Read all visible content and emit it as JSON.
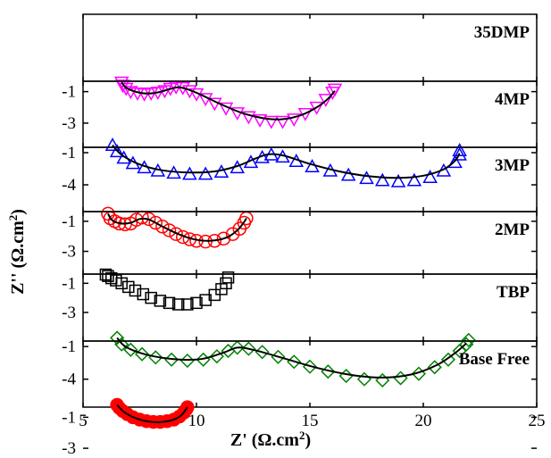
{
  "chart_data": {
    "type": "scatter",
    "layout": "stacked-panels",
    "xlabel": "Z' (Ω.cm2)",
    "ylabel": "Z'' (Ω.cm2)",
    "xlim": [
      5,
      25
    ],
    "x_ticks": [
      "5",
      "10",
      "15",
      "20",
      "25"
    ],
    "fit_line_color": "#000000",
    "panels": [
      {
        "name": "35DMP",
        "marker": "triangle-down",
        "color": "#ff00ff",
        "ylim": [
          0,
          -3.8
        ],
        "y_ticks": [
          "-3",
          "-1"
        ],
        "y_tick_values": [
          -3,
          -1
        ],
        "points": [
          [
            6.7,
            -0.4
          ],
          [
            6.75,
            -0.6
          ],
          [
            6.9,
            -0.8
          ],
          [
            7.1,
            -1.0
          ],
          [
            7.4,
            -1.1
          ],
          [
            7.7,
            -1.15
          ],
          [
            8.0,
            -1.1
          ],
          [
            8.3,
            -1.05
          ],
          [
            8.6,
            -0.95
          ],
          [
            8.85,
            -0.8
          ],
          [
            9.1,
            -0.7
          ],
          [
            9.4,
            -0.75
          ],
          [
            9.7,
            -0.95
          ],
          [
            10.0,
            -1.15
          ],
          [
            10.4,
            -1.45
          ],
          [
            10.8,
            -1.75
          ],
          [
            11.3,
            -2.05
          ],
          [
            11.8,
            -2.35
          ],
          [
            12.3,
            -2.6
          ],
          [
            12.8,
            -2.8
          ],
          [
            13.3,
            -2.9
          ],
          [
            13.8,
            -2.9
          ],
          [
            14.3,
            -2.75
          ],
          [
            14.8,
            -2.4
          ],
          [
            15.3,
            -2.0
          ],
          [
            15.7,
            -1.5
          ],
          [
            16.0,
            -1.05
          ],
          [
            16.1,
            -0.85
          ]
        ],
        "fit": [
          [
            6.7,
            -0.4
          ],
          [
            6.9,
            -0.75
          ],
          [
            7.3,
            -1.0
          ],
          [
            7.8,
            -1.12
          ],
          [
            8.3,
            -1.05
          ],
          [
            8.8,
            -0.85
          ],
          [
            9.2,
            -0.72
          ],
          [
            9.6,
            -0.85
          ],
          [
            10.2,
            -1.2
          ],
          [
            11.0,
            -1.75
          ],
          [
            12.0,
            -2.35
          ],
          [
            13.0,
            -2.7
          ],
          [
            13.8,
            -2.75
          ],
          [
            14.6,
            -2.5
          ],
          [
            15.3,
            -2.0
          ],
          [
            15.8,
            -1.45
          ],
          [
            16.1,
            -0.95
          ]
        ]
      },
      {
        "name": "4MP",
        "marker": "triangle-up",
        "color": "#0000ff",
        "ylim": [
          0,
          -5.5
        ],
        "y_ticks": [
          "-4",
          "-1"
        ],
        "y_tick_values": [
          -4,
          -1
        ],
        "points": [
          [
            6.3,
            -0.3
          ],
          [
            6.5,
            -0.9
          ],
          [
            6.8,
            -1.5
          ],
          [
            7.2,
            -2.0
          ],
          [
            7.7,
            -2.4
          ],
          [
            8.3,
            -2.7
          ],
          [
            9.0,
            -2.9
          ],
          [
            9.7,
            -3.0
          ],
          [
            10.4,
            -3.0
          ],
          [
            11.1,
            -2.8
          ],
          [
            11.8,
            -2.4
          ],
          [
            12.4,
            -1.9
          ],
          [
            12.9,
            -1.45
          ],
          [
            13.3,
            -1.2
          ],
          [
            13.8,
            -1.4
          ],
          [
            14.4,
            -1.8
          ],
          [
            15.1,
            -2.3
          ],
          [
            15.9,
            -2.7
          ],
          [
            16.7,
            -3.1
          ],
          [
            17.5,
            -3.4
          ],
          [
            18.2,
            -3.6
          ],
          [
            18.9,
            -3.7
          ],
          [
            19.6,
            -3.6
          ],
          [
            20.3,
            -3.3
          ],
          [
            20.9,
            -2.7
          ],
          [
            21.4,
            -1.9
          ],
          [
            21.6,
            -1.2
          ],
          [
            21.6,
            -0.8
          ]
        ],
        "fit": [
          [
            6.3,
            -0.3
          ],
          [
            6.7,
            -1.2
          ],
          [
            7.5,
            -2.1
          ],
          [
            8.5,
            -2.65
          ],
          [
            9.7,
            -2.85
          ],
          [
            10.8,
            -2.75
          ],
          [
            11.8,
            -2.25
          ],
          [
            12.6,
            -1.55
          ],
          [
            13.2,
            -1.15
          ],
          [
            13.9,
            -1.3
          ],
          [
            15.0,
            -2.05
          ],
          [
            16.3,
            -2.75
          ],
          [
            17.6,
            -3.2
          ],
          [
            18.9,
            -3.35
          ],
          [
            20.0,
            -3.15
          ],
          [
            20.9,
            -2.55
          ],
          [
            21.4,
            -1.75
          ],
          [
            21.6,
            -1.05
          ]
        ]
      },
      {
        "name": "3MP",
        "marker": "circle",
        "color": "#ff0000",
        "ylim": [
          0,
          -3.8
        ],
        "y_ticks": [
          "-3",
          "-1"
        ],
        "y_tick_values": [
          -3,
          -1
        ],
        "points": [
          [
            6.1,
            -0.5
          ],
          [
            6.2,
            -0.8
          ],
          [
            6.4,
            -1.0
          ],
          [
            6.6,
            -1.15
          ],
          [
            6.85,
            -1.2
          ],
          [
            7.1,
            -1.15
          ],
          [
            7.35,
            -0.9
          ],
          [
            7.6,
            -0.75
          ],
          [
            7.9,
            -0.85
          ],
          [
            8.2,
            -1.1
          ],
          [
            8.5,
            -1.35
          ],
          [
            8.8,
            -1.6
          ],
          [
            9.1,
            -1.85
          ],
          [
            9.4,
            -2.05
          ],
          [
            9.7,
            -2.2
          ],
          [
            10.0,
            -2.3
          ],
          [
            10.4,
            -2.35
          ],
          [
            10.8,
            -2.3
          ],
          [
            11.2,
            -2.15
          ],
          [
            11.6,
            -1.85
          ],
          [
            11.9,
            -1.5
          ],
          [
            12.1,
            -1.1
          ],
          [
            12.2,
            -0.8
          ]
        ],
        "fit": [
          [
            6.1,
            -0.5
          ],
          [
            6.3,
            -0.95
          ],
          [
            6.7,
            -1.15
          ],
          [
            7.1,
            -1.1
          ],
          [
            7.5,
            -0.85
          ],
          [
            7.9,
            -0.88
          ],
          [
            8.5,
            -1.35
          ],
          [
            9.2,
            -1.85
          ],
          [
            9.9,
            -2.2
          ],
          [
            10.6,
            -2.3
          ],
          [
            11.3,
            -2.1
          ],
          [
            11.8,
            -1.6
          ],
          [
            12.1,
            -1.05
          ],
          [
            12.2,
            -0.8
          ]
        ]
      },
      {
        "name": "2MP",
        "marker": "square",
        "color": "#000000",
        "ylim": [
          0,
          -3.8
        ],
        "y_ticks": [
          "-3",
          "-1"
        ],
        "y_tick_values": [
          -3,
          -1
        ],
        "points": [
          [
            6.0,
            -0.4
          ],
          [
            6.1,
            -0.5
          ],
          [
            6.25,
            -0.65
          ],
          [
            6.45,
            -0.8
          ],
          [
            6.7,
            -1.0
          ],
          [
            7.0,
            -1.25
          ],
          [
            7.3,
            -1.5
          ],
          [
            7.65,
            -1.75
          ],
          [
            8.0,
            -2.0
          ],
          [
            8.4,
            -2.2
          ],
          [
            8.8,
            -2.35
          ],
          [
            9.2,
            -2.45
          ],
          [
            9.6,
            -2.45
          ],
          [
            10.0,
            -2.35
          ],
          [
            10.4,
            -2.15
          ],
          [
            10.8,
            -1.8
          ],
          [
            11.1,
            -1.4
          ],
          [
            11.3,
            -1.0
          ],
          [
            11.4,
            -0.6
          ]
        ],
        "fit": []
      },
      {
        "name": "TBP",
        "marker": "diamond",
        "color": "#008000",
        "ylim": [
          0,
          -5.5
        ],
        "y_ticks": [
          "-4",
          "-1"
        ],
        "y_tick_values": [
          -4,
          -1
        ],
        "points": [
          [
            6.5,
            -0.2
          ],
          [
            6.7,
            -0.8
          ],
          [
            7.1,
            -1.3
          ],
          [
            7.6,
            -1.7
          ],
          [
            8.2,
            -2.0
          ],
          [
            8.9,
            -2.2
          ],
          [
            9.6,
            -2.3
          ],
          [
            10.3,
            -2.2
          ],
          [
            10.9,
            -1.9
          ],
          [
            11.4,
            -1.4
          ],
          [
            11.8,
            -1.1
          ],
          [
            12.3,
            -1.2
          ],
          [
            12.9,
            -1.5
          ],
          [
            13.6,
            -1.95
          ],
          [
            14.3,
            -2.4
          ],
          [
            15.0,
            -2.85
          ],
          [
            15.8,
            -3.3
          ],
          [
            16.6,
            -3.7
          ],
          [
            17.4,
            -4.0
          ],
          [
            18.2,
            -4.1
          ],
          [
            19.0,
            -3.9
          ],
          [
            19.8,
            -3.5
          ],
          [
            20.5,
            -2.9
          ],
          [
            21.1,
            -2.2
          ],
          [
            21.6,
            -1.4
          ],
          [
            21.9,
            -0.8
          ],
          [
            22.0,
            -0.4
          ]
        ],
        "fit": [
          [
            6.5,
            -0.2
          ],
          [
            6.9,
            -1.05
          ],
          [
            7.8,
            -1.75
          ],
          [
            9.0,
            -2.15
          ],
          [
            10.2,
            -2.15
          ],
          [
            11.2,
            -1.55
          ],
          [
            11.8,
            -1.1
          ],
          [
            12.5,
            -1.3
          ],
          [
            13.8,
            -2.05
          ],
          [
            15.3,
            -2.95
          ],
          [
            16.8,
            -3.6
          ],
          [
            18.2,
            -3.85
          ],
          [
            19.5,
            -3.55
          ],
          [
            20.6,
            -2.7
          ],
          [
            21.4,
            -1.6
          ],
          [
            21.9,
            -0.7
          ]
        ]
      },
      {
        "name": "Base Free",
        "marker": "circle-filled",
        "color": "#ff0000",
        "ylim": [
          0,
          -3.8
        ],
        "y_ticks": [
          "-3",
          "-1"
        ],
        "y_tick_values": [
          -3,
          -1
        ],
        "points": [
          [
            6.5,
            -0.2
          ],
          [
            6.6,
            -0.4
          ],
          [
            6.75,
            -0.6
          ],
          [
            6.95,
            -0.8
          ],
          [
            7.2,
            -1.0
          ],
          [
            7.5,
            -1.15
          ],
          [
            7.8,
            -1.25
          ],
          [
            8.1,
            -1.3
          ],
          [
            8.4,
            -1.3
          ],
          [
            8.7,
            -1.25
          ],
          [
            9.0,
            -1.15
          ],
          [
            9.25,
            -0.95
          ],
          [
            9.45,
            -0.7
          ],
          [
            9.55,
            -0.5
          ],
          [
            9.6,
            -0.35
          ]
        ],
        "fit": [
          [
            6.5,
            -0.2
          ],
          [
            6.8,
            -0.65
          ],
          [
            7.3,
            -1.05
          ],
          [
            7.9,
            -1.28
          ],
          [
            8.5,
            -1.3
          ],
          [
            9.0,
            -1.15
          ],
          [
            9.35,
            -0.85
          ],
          [
            9.6,
            -0.35
          ]
        ]
      }
    ]
  }
}
